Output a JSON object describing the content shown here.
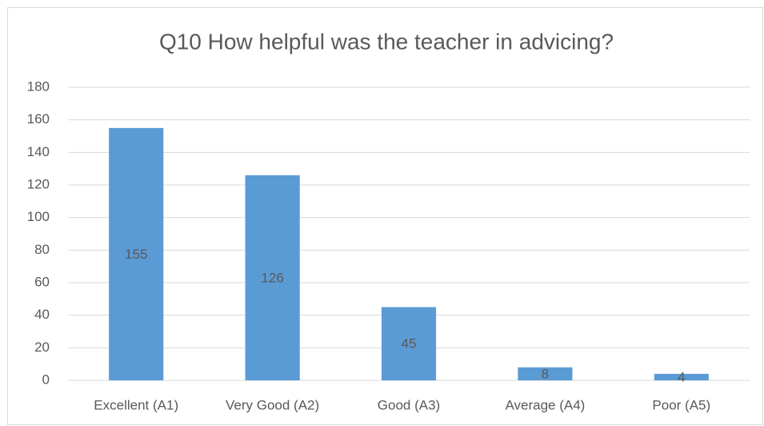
{
  "chart_data": {
    "type": "bar",
    "title": "Q10 How helpful was the teacher in advicing?",
    "categories": [
      "Excellent (A1)",
      "Very Good (A2)",
      "Good (A3)",
      "Average (A4)",
      "Poor (A5)"
    ],
    "values": [
      155,
      126,
      45,
      8,
      4
    ],
    "color": "#5b9bd5",
    "ylim": [
      0,
      180
    ],
    "yticks": [
      0,
      20,
      40,
      60,
      80,
      100,
      120,
      140,
      160,
      180
    ],
    "grid": true
  }
}
